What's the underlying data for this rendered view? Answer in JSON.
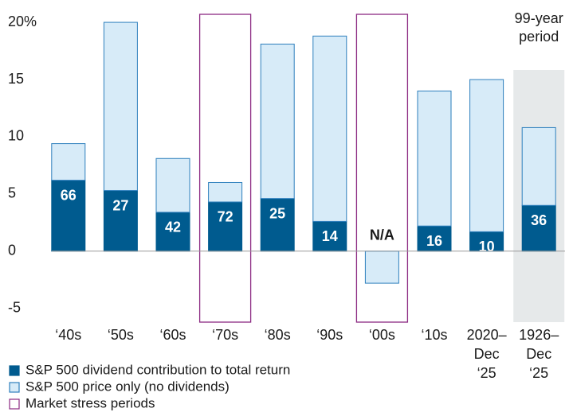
{
  "chart_data": {
    "type": "stacked_bar",
    "categories": [
      "‘40s",
      "‘50s",
      "‘60s",
      "‘70s",
      "‘80s",
      "‘90s",
      "‘00s",
      "‘10s",
      "2020– Dec ‘25",
      "1926– Dec ‘25"
    ],
    "series": [
      {
        "name": "S&P 500 dividend contribution to total return",
        "color": "#005b8f",
        "values": [
          6.2,
          5.3,
          3.4,
          4.3,
          4.6,
          2.6,
          0,
          2.2,
          1.7,
          4.0
        ]
      },
      {
        "name": "S&P 500 price only (no dividends)",
        "color": "#d7ebf8",
        "values": [
          3.2,
          14.7,
          4.7,
          1.7,
          13.5,
          16.2,
          -2.8,
          11.8,
          13.3,
          6.8
        ]
      }
    ],
    "dividend_share_labels": [
      "66",
      "27",
      "42",
      "72",
      "25",
      "14",
      "N/A",
      "16",
      "10",
      "36"
    ],
    "stress_periods": {
      "name": "Market stress periods",
      "color": "#8c2a82",
      "categories": [
        "‘70s",
        "‘00s"
      ]
    },
    "shaded_period": {
      "category": "1926– Dec ‘25",
      "label": "99-year period",
      "color": "#e6e9ea"
    },
    "ylim": [
      -6.2,
      20.7
    ],
    "yticks": [
      -5,
      0,
      5,
      10,
      {
        "value": 15,
        "label": "15"
      },
      {
        "value": 20,
        "label": "20%"
      }
    ]
  }
}
